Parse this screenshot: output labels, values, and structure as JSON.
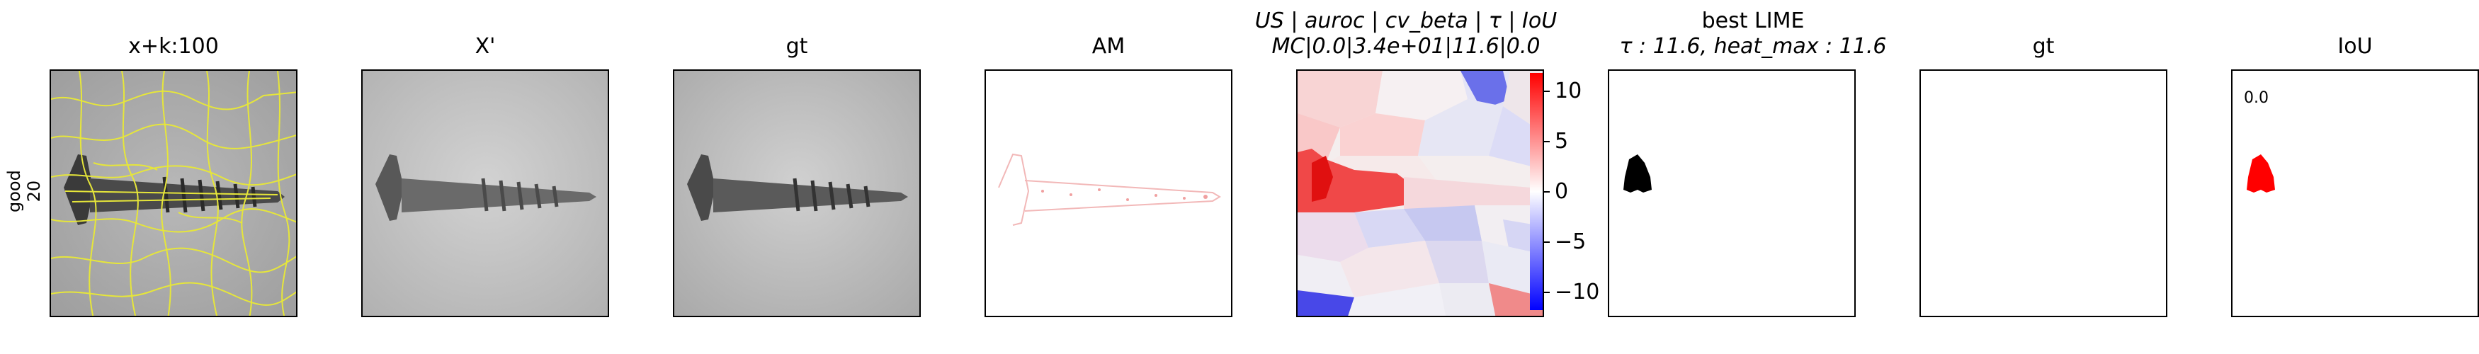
{
  "row_label": {
    "line1": "good",
    "line2": "20"
  },
  "panels": {
    "p1_title": "x+k:100",
    "p2_title": "X'",
    "p3_title": "gt",
    "p4_title": "AM",
    "p5_title_line1": "US | auroc | cv_beta | τ | IoU",
    "p5_title_line2": "MC|0.0|3.4e+01|11.6|0.0",
    "p6_title_line1": "best LIME",
    "p6_title_line2": "τ : 11.6, heat_max : 11.6",
    "p7_title": "gt",
    "p8_title": "IoU",
    "p8_value": "0.0"
  },
  "colorbar": {
    "ticks": [
      "10",
      "5",
      "0",
      "−5",
      "−10"
    ],
    "colors": {
      "pos": "#ff0000",
      "mid": "#ffffff",
      "neg": "#0000ff"
    }
  },
  "colors": {
    "superpixel_boundaries": "#e6e63a",
    "mask_black": "#000000",
    "mask_red": "#ff0000"
  }
}
